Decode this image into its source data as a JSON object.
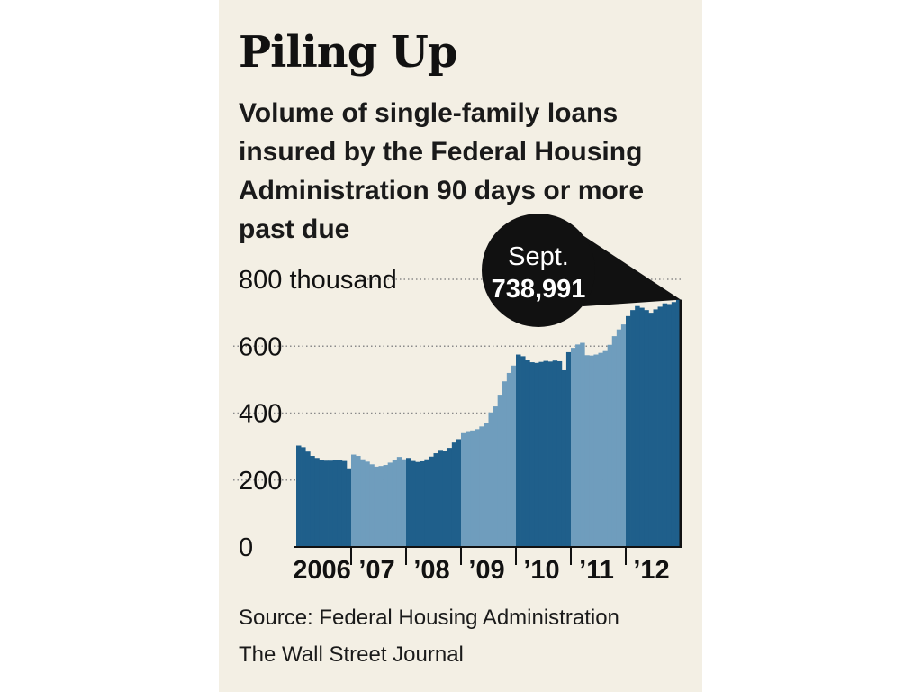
{
  "title": "Piling Up",
  "subtitle": "Volume of single-family loans insured by the Federal Housing Administration 90 days or more past due",
  "source": "Source: Federal Housing Administration",
  "credit": "The Wall Street Journal",
  "colors": {
    "background": "#f3efe4",
    "bar_dark": "#1f5f8b",
    "bar_light": "#6f9dbd",
    "callout": "#111111"
  },
  "callout": {
    "label": "Sept.",
    "value": "738,991"
  },
  "chart_data": {
    "type": "bar",
    "title": "Piling Up",
    "ylabel": "",
    "xlabel": "",
    "ylim": [
      0,
      800
    ],
    "yticks": [
      {
        "value": 0,
        "label": "0"
      },
      {
        "value": 200,
        "label": "200"
      },
      {
        "value": 400,
        "label": "400"
      },
      {
        "value": 600,
        "label": "600"
      },
      {
        "value": 800,
        "label": "800 thousand"
      }
    ],
    "grid": "dotted horizontal",
    "years": [
      {
        "label": "2006",
        "shade": "dark",
        "values": [
          303,
          298,
          285,
          272,
          266,
          261,
          258,
          258,
          260,
          259,
          257,
          235
        ]
      },
      {
        "label": "’07",
        "shade": "light",
        "values": [
          276,
          272,
          262,
          255,
          247,
          240,
          242,
          245,
          252,
          261,
          269,
          262
        ]
      },
      {
        "label": "’08",
        "shade": "dark",
        "values": [
          266,
          257,
          254,
          256,
          262,
          270,
          280,
          290,
          286,
          296,
          312,
          322
        ]
      },
      {
        "label": "’09",
        "shade": "light",
        "values": [
          340,
          346,
          348,
          352,
          360,
          370,
          402,
          420,
          455,
          495,
          520,
          542
        ]
      },
      {
        "label": "’10",
        "shade": "dark",
        "values": [
          575,
          570,
          558,
          552,
          550,
          553,
          556,
          554,
          557,
          555,
          528,
          582
        ]
      },
      {
        "label": "’11",
        "shade": "light",
        "values": [
          595,
          605,
          610,
          573,
          572,
          575,
          580,
          588,
          604,
          630,
          650,
          665
        ]
      },
      {
        "label": "’12",
        "shade": "dark",
        "values": [
          690,
          708,
          720,
          715,
          708,
          700,
          710,
          718,
          728,
          726,
          732,
          739
        ]
      }
    ]
  }
}
